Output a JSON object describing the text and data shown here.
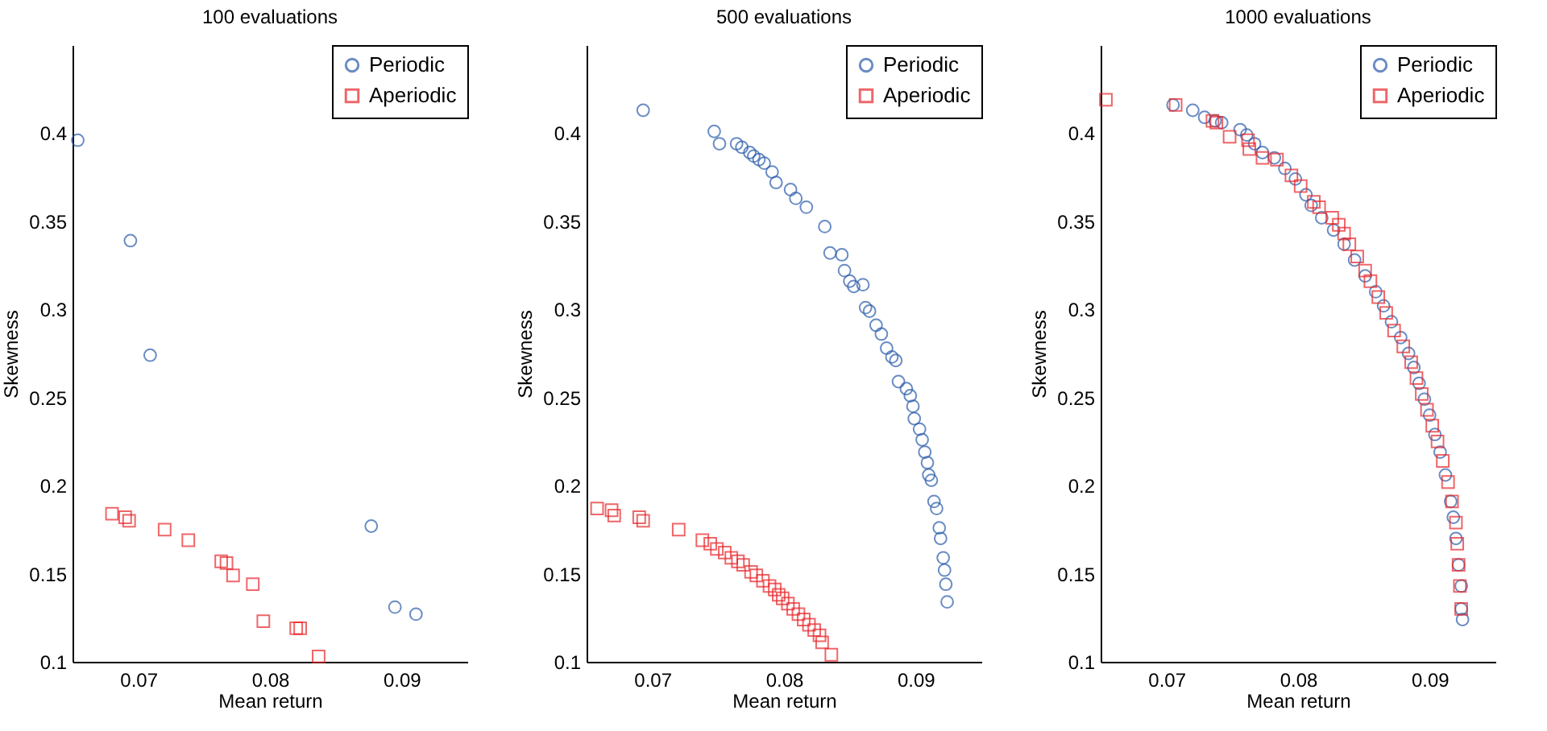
{
  "chart_data": [
    {
      "type": "scatter",
      "title": "100 evaluations",
      "xlabel": "Mean return",
      "ylabel": "Skewness",
      "xlim": [
        0.065,
        0.095
      ],
      "ylim": [
        0.1,
        0.45
      ],
      "xticks": [
        0.07,
        0.08,
        0.09
      ],
      "yticks": [
        0.1,
        0.15,
        0.2,
        0.25,
        0.3,
        0.35,
        0.4
      ],
      "legend": "top right",
      "series": [
        {
          "name": "Periodic",
          "color": "#2a5caa",
          "marker": "circle",
          "x": [
            0.0654,
            0.0694,
            0.0709,
            0.0877,
            0.0895,
            0.0911
          ],
          "values": [
            0.396,
            0.339,
            0.274,
            0.177,
            0.131,
            0.127
          ]
        },
        {
          "name": "Aperiodic",
          "color": "#e8262a",
          "marker": "square",
          "x": [
            0.068,
            0.069,
            0.0693,
            0.072,
            0.0738,
            0.0763,
            0.0767,
            0.0772,
            0.0787,
            0.0795,
            0.082,
            0.0823,
            0.0837
          ],
          "values": [
            0.184,
            0.182,
            0.18,
            0.175,
            0.169,
            0.157,
            0.156,
            0.149,
            0.144,
            0.123,
            0.119,
            0.119,
            0.103
          ]
        }
      ]
    },
    {
      "type": "scatter",
      "title": "500 evaluations",
      "xlabel": "Mean return",
      "ylabel": "Skewness",
      "xlim": [
        0.065,
        0.095
      ],
      "ylim": [
        0.1,
        0.45
      ],
      "xticks": [
        0.07,
        0.08,
        0.09
      ],
      "yticks": [
        0.1,
        0.15,
        0.2,
        0.25,
        0.3,
        0.35,
        0.4
      ],
      "legend": "top right",
      "series": [
        {
          "name": "Periodic",
          "color": "#2a5caa",
          "marker": "circle",
          "x": [
            0.0693,
            0.0747,
            0.0751,
            0.0764,
            0.0768,
            0.0774,
            0.0777,
            0.0781,
            0.0785,
            0.0791,
            0.0794,
            0.0805,
            0.0809,
            0.0817,
            0.0831,
            0.0835,
            0.0844,
            0.0846,
            0.085,
            0.0853,
            0.086,
            0.0862,
            0.0865,
            0.087,
            0.0874,
            0.0878,
            0.0882,
            0.0885,
            0.0887,
            0.0893,
            0.0896,
            0.0898,
            0.0899,
            0.0903,
            0.0905,
            0.0907,
            0.0909,
            0.091,
            0.0912,
            0.0914,
            0.0916,
            0.0918,
            0.0919,
            0.0921,
            0.0922,
            0.0923,
            0.0924
          ],
          "values": [
            0.413,
            0.401,
            0.394,
            0.394,
            0.392,
            0.389,
            0.387,
            0.385,
            0.383,
            0.378,
            0.372,
            0.368,
            0.363,
            0.358,
            0.347,
            0.332,
            0.331,
            0.322,
            0.316,
            0.313,
            0.314,
            0.301,
            0.299,
            0.291,
            0.286,
            0.278,
            0.273,
            0.271,
            0.259,
            0.255,
            0.251,
            0.245,
            0.238,
            0.232,
            0.226,
            0.219,
            0.213,
            0.206,
            0.203,
            0.191,
            0.187,
            0.176,
            0.17,
            0.159,
            0.152,
            0.144,
            0.134
          ]
        },
        {
          "name": "Aperiodic",
          "color": "#e8262a",
          "marker": "square",
          "x": [
            0.0658,
            0.0669,
            0.0671,
            0.069,
            0.0693,
            0.072,
            0.0738,
            0.0744,
            0.0749,
            0.0755,
            0.076,
            0.0765,
            0.0769,
            0.0775,
            0.0779,
            0.0784,
            0.0789,
            0.0793,
            0.0796,
            0.0799,
            0.0803,
            0.0807,
            0.0811,
            0.0815,
            0.0819,
            0.0823,
            0.0827,
            0.0829,
            0.0836
          ],
          "values": [
            0.187,
            0.186,
            0.183,
            0.182,
            0.18,
            0.175,
            0.169,
            0.167,
            0.164,
            0.162,
            0.159,
            0.157,
            0.155,
            0.151,
            0.149,
            0.146,
            0.143,
            0.141,
            0.138,
            0.136,
            0.133,
            0.13,
            0.127,
            0.124,
            0.121,
            0.118,
            0.115,
            0.111,
            0.104
          ]
        }
      ]
    },
    {
      "type": "scatter",
      "title": "1000 evaluations",
      "xlabel": "Mean return",
      "ylabel": "Skewness",
      "xlim": [
        0.065,
        0.095
      ],
      "ylim": [
        0.1,
        0.45
      ],
      "xticks": [
        0.07,
        0.08,
        0.09
      ],
      "yticks": [
        0.1,
        0.15,
        0.2,
        0.25,
        0.3,
        0.35,
        0.4
      ],
      "legend": "top right",
      "series": [
        {
          "name": "Periodic",
          "color": "#2a5caa",
          "marker": "circle",
          "x": [
            0.0705,
            0.072,
            0.0729,
            0.0737,
            0.0742,
            0.0756,
            0.0761,
            0.0767,
            0.0773,
            0.0782,
            0.079,
            0.0798,
            0.0806,
            0.081,
            0.0818,
            0.0827,
            0.0835,
            0.0843,
            0.0851,
            0.0859,
            0.0865,
            0.0871,
            0.0878,
            0.0884,
            0.0888,
            0.0892,
            0.0896,
            0.09,
            0.0904,
            0.0908,
            0.0912,
            0.0916,
            0.0918,
            0.092,
            0.0922,
            0.0924,
            0.0924,
            0.0925
          ],
          "values": [
            0.416,
            0.413,
            0.409,
            0.407,
            0.406,
            0.402,
            0.399,
            0.394,
            0.389,
            0.386,
            0.38,
            0.374,
            0.365,
            0.359,
            0.352,
            0.345,
            0.337,
            0.328,
            0.319,
            0.31,
            0.302,
            0.293,
            0.284,
            0.275,
            0.267,
            0.258,
            0.249,
            0.24,
            0.229,
            0.219,
            0.206,
            0.191,
            0.182,
            0.17,
            0.155,
            0.143,
            0.13,
            0.124
          ]
        },
        {
          "name": "Aperiodic",
          "color": "#e8262a",
          "marker": "square",
          "x": [
            0.0654,
            0.0707,
            0.0735,
            0.0738,
            0.0748,
            0.0762,
            0.0763,
            0.0773,
            0.0784,
            0.0795,
            0.0802,
            0.0812,
            0.0816,
            0.0826,
            0.0831,
            0.0835,
            0.0839,
            0.0845,
            0.0851,
            0.0855,
            0.0861,
            0.0867,
            0.0873,
            0.088,
            0.0886,
            0.089,
            0.0894,
            0.0898,
            0.0902,
            0.0906,
            0.091,
            0.0914,
            0.0917,
            0.092,
            0.0921,
            0.0922,
            0.0923,
            0.0924
          ],
          "values": [
            0.419,
            0.416,
            0.407,
            0.406,
            0.398,
            0.396,
            0.391,
            0.386,
            0.385,
            0.376,
            0.37,
            0.361,
            0.358,
            0.352,
            0.348,
            0.343,
            0.337,
            0.33,
            0.322,
            0.316,
            0.307,
            0.298,
            0.288,
            0.279,
            0.27,
            0.261,
            0.252,
            0.243,
            0.234,
            0.225,
            0.214,
            0.202,
            0.191,
            0.179,
            0.167,
            0.155,
            0.143,
            0.13
          ]
        }
      ]
    }
  ]
}
